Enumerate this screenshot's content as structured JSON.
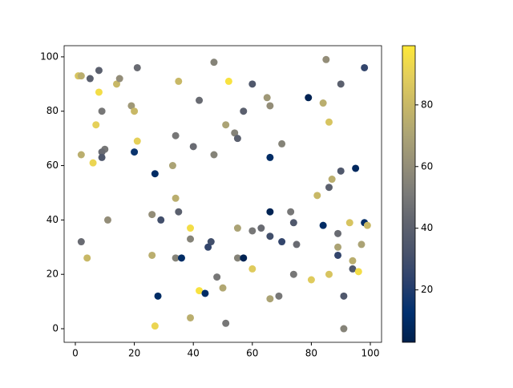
{
  "chart_data": {
    "type": "scatter",
    "colormap": "cividis",
    "x": [
      1,
      2,
      5,
      8,
      8,
      14,
      15,
      21,
      9,
      19,
      20,
      7,
      35,
      47,
      52,
      60,
      42,
      65,
      66,
      57,
      79,
      85,
      84,
      90,
      98,
      86,
      51,
      54,
      55,
      34,
      21,
      70,
      40,
      10,
      9,
      20,
      2,
      47,
      66,
      6,
      9,
      33,
      27,
      90,
      95,
      87,
      86,
      82,
      34,
      26,
      35,
      29,
      11,
      66,
      73,
      74,
      93,
      98,
      99,
      84,
      39,
      55,
      60,
      63,
      66,
      39,
      46,
      70,
      75,
      89,
      97,
      89,
      45,
      2,
      4,
      26,
      34,
      36,
      55,
      57,
      89,
      94,
      94,
      96,
      60,
      74,
      86,
      80,
      48,
      50,
      42,
      44,
      28,
      66,
      69,
      91,
      39,
      51,
      27,
      91
    ],
    "y": [
      93,
      93,
      92,
      95,
      87,
      90,
      92,
      96,
      80,
      82,
      80,
      75,
      91,
      98,
      91,
      90,
      84,
      85,
      82,
      80,
      85,
      99,
      83,
      90,
      96,
      76,
      75,
      72,
      70,
      71,
      69,
      68,
      67,
      66,
      65,
      65,
      64,
      64,
      63,
      61,
      63,
      60,
      57,
      58,
      59,
      55,
      52,
      49,
      48,
      42,
      43,
      40,
      40,
      43,
      43,
      39,
      39,
      39,
      38,
      38,
      37,
      37,
      36,
      37,
      34,
      33,
      32,
      32,
      31,
      35,
      31,
      30,
      30,
      32,
      26,
      27,
      26,
      26,
      26,
      26,
      27,
      25,
      22,
      21,
      22,
      20,
      20,
      18,
      19,
      15,
      14,
      13,
      12,
      11,
      12,
      12,
      4,
      2,
      1,
      0
    ],
    "c": [
      85,
      75,
      40,
      40,
      95,
      80,
      60,
      45,
      50,
      65,
      80,
      90,
      80,
      55,
      97,
      35,
      45,
      65,
      60,
      40,
      5,
      60,
      75,
      40,
      25,
      85,
      70,
      55,
      40,
      50,
      90,
      55,
      45,
      50,
      45,
      15,
      75,
      55,
      10,
      92,
      35,
      70,
      10,
      35,
      8,
      75,
      40,
      80,
      75,
      60,
      40,
      30,
      60,
      5,
      50,
      35,
      85,
      10,
      80,
      10,
      95,
      70,
      50,
      45,
      30,
      55,
      30,
      25,
      45,
      45,
      70,
      70,
      25,
      45,
      80,
      75,
      55,
      10,
      55,
      5,
      25,
      75,
      35,
      95,
      88,
      50,
      85,
      88,
      50,
      72,
      97,
      10,
      10,
      70,
      50,
      35,
      75,
      50,
      92,
      55
    ],
    "xlim": [
      -3.8,
      103.8
    ],
    "ylim": [
      -5,
      104.1
    ],
    "xticks": [
      0,
      20,
      40,
      60,
      80,
      100
    ],
    "yticks": [
      0,
      20,
      40,
      60,
      80,
      100
    ],
    "clim": [
      3,
      99.2
    ],
    "colorbar_ticks": [
      20,
      40,
      60,
      80
    ]
  }
}
